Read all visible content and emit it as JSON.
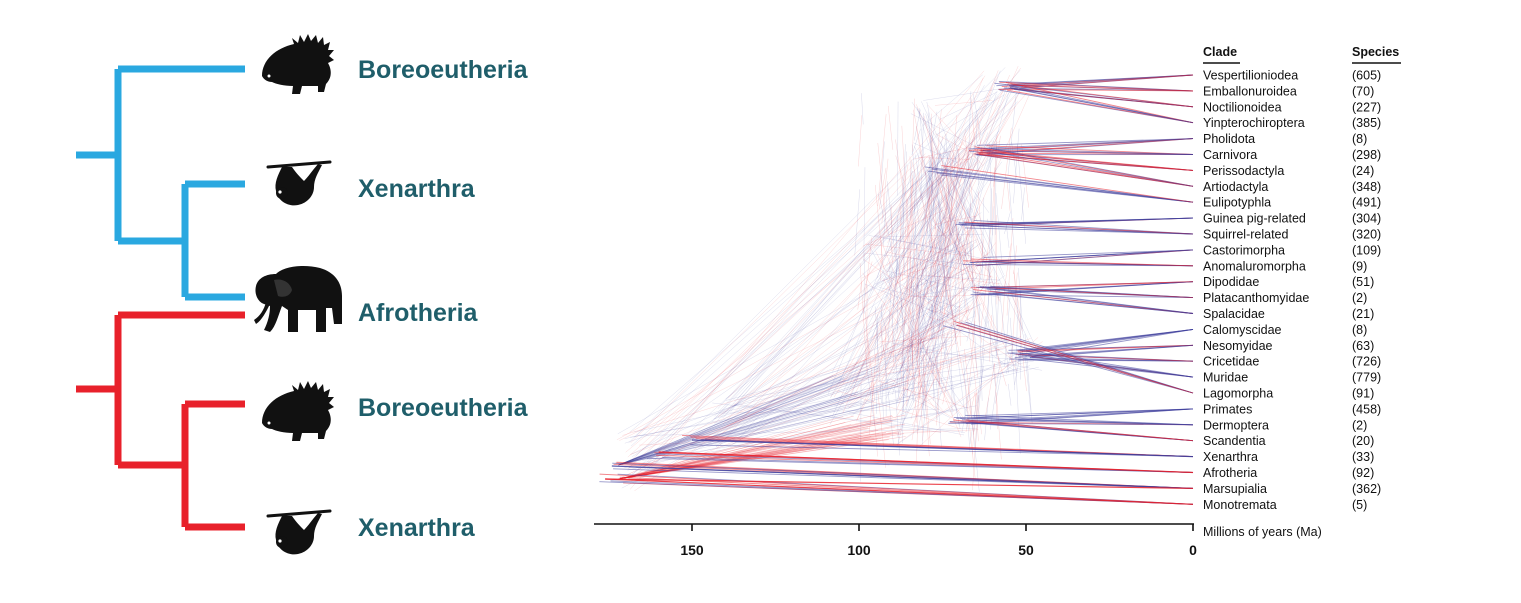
{
  "colors": {
    "blue": "#2aa8e0",
    "red": "#e8212b",
    "tree_blue": "#3f3f9c",
    "tree_red": "#e8212b",
    "label": "#1f5e6a"
  },
  "left_panel": {
    "tree1": {
      "leaves": [
        {
          "label": "Boreoeutheria",
          "icon": "porcupine-icon"
        },
        {
          "label": "Xenarthra",
          "icon": "sloth-icon"
        },
        {
          "label": "Afrotheria",
          "icon": "elephant-icon"
        }
      ]
    },
    "tree2": {
      "leaves": [
        {
          "label": "Boreoeutheria",
          "icon": "porcupine-icon"
        },
        {
          "label": "Xenarthra",
          "icon": "sloth-icon"
        }
      ]
    }
  },
  "table": {
    "clade_header": "Clade",
    "species_header": "Species"
  },
  "chart_data": {
    "type": "table",
    "clades": [
      {
        "name": "Vespertilioniodea",
        "species": "(605)"
      },
      {
        "name": "Emballonuroidea",
        "species": "(70)"
      },
      {
        "name": "Noctilionoidea",
        "species": "(227)"
      },
      {
        "name": "Yinpterochiroptera",
        "species": "(385)"
      },
      {
        "name": "Pholidota",
        "species": "(8)"
      },
      {
        "name": "Carnivora",
        "species": "(298)"
      },
      {
        "name": "Perissodactyla",
        "species": "(24)"
      },
      {
        "name": "Artiodactyla",
        "species": "(348)"
      },
      {
        "name": "Eulipotyphla",
        "species": "(491)"
      },
      {
        "name": "Guinea pig-related",
        "species": "(304)"
      },
      {
        "name": "Squirrel-related",
        "species": "(320)"
      },
      {
        "name": "Castorimorpha",
        "species": "(109)"
      },
      {
        "name": "Anomaluromorpha",
        "species": "(9)"
      },
      {
        "name": "Dipodidae",
        "species": "(51)"
      },
      {
        "name": "Platacanthomyidae",
        "species": "(2)"
      },
      {
        "name": "Spalacidae",
        "species": "(21)"
      },
      {
        "name": "Calomyscidae",
        "species": "(8)"
      },
      {
        "name": "Nesomyidae",
        "species": "(63)"
      },
      {
        "name": "Cricetidae",
        "species": "(726)"
      },
      {
        "name": "Muridae",
        "species": "(779)"
      },
      {
        "name": "Lagomorpha",
        "species": "(91)"
      },
      {
        "name": "Primates",
        "species": "(458)"
      },
      {
        "name": "Dermoptera",
        "species": "(2)"
      },
      {
        "name": "Scandentia",
        "species": "(20)"
      },
      {
        "name": "Xenarthra",
        "species": "(33)"
      },
      {
        "name": "Afrotheria",
        "species": "(92)"
      },
      {
        "name": "Marsupialia",
        "species": "(362)"
      },
      {
        "name": "Monotremata",
        "species": "(5)"
      }
    ],
    "axis": {
      "label": "Millions of years (Ma)",
      "ticks": [
        150,
        100,
        50,
        0
      ],
      "range": [
        180,
        0
      ]
    }
  }
}
